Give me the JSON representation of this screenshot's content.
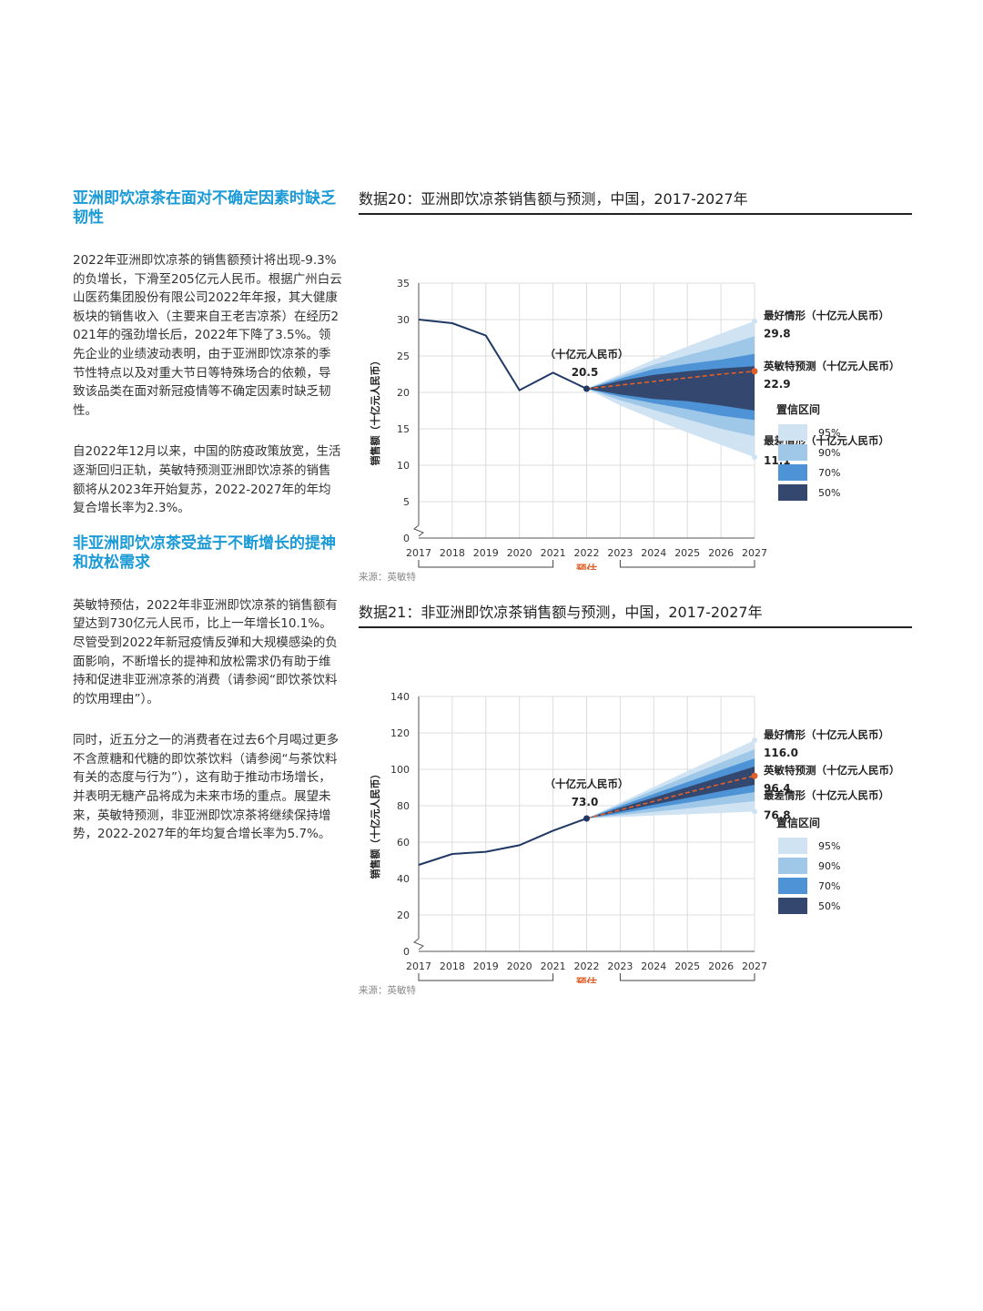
{
  "article": {
    "section1_title": "亚洲即饮凉茶在面对不确定因素时缺乏韧性",
    "section1_p1": "2022年亚洲即饮凉茶的销售额预计将出现-9.3%的负增长，下滑至205亿元人民币。根据广州白云山医药集团股份有限公司2022年年报，其大健康板块的销售收入（主要来自王老吉凉茶）在经历2021年的强劲增长后，2022年下降了3.5%。领先企业的业绩波动表明，由于亚洲即饮凉茶的季节性特点以及对重大节日等特殊场合的依赖，导致该品类在面对新冠疫情等不确定因素时缺乏韧性。",
    "section1_p2": "自2022年12月以来，中国的防疫政策放宽，生活逐渐回归正轨，英敏特预测亚洲即饮凉茶的销售额将从2023年开始复苏，2022-2027年的年均复合增长率为2.3%。",
    "section2_title": "非亚洲即饮凉茶受益于不断增长的提神和放松需求",
    "section2_p1": "英敏特预估，2022年非亚洲即饮凉茶的销售额有望达到730亿元人民币，比上一年增长10.1%。尽管受到2022年新冠疫情反弹和大规模感染的负面影响，不断增长的提神和放松需求仍有助于维持和促进非亚洲凉茶的消费（请参阅“即饮茶饮料的饮用理由”）。",
    "section2_p2": "同时，近五分之一的消费者在过去6个月喝过更多不含蔗糖和代糖的即饮茶饮料（请参阅“与茶饮料有关的态度与行为”），这有助于推动市场增长，并表明无糖产品将成为未来市场的重点。展望未来，英敏特预测，非亚洲即饮凉茶将继续保持增势，2022-2027年的年均复合增长率为5.7%。"
  },
  "figures": [
    {
      "title": "数据20：亚洲即饮凉茶销售额与预测，中国，2017-2027年",
      "source": "来源：英敏特"
    },
    {
      "title": "数据21：非亚洲即饮凉茶销售额与预测，中国，2017-2027年",
      "source": "来源：英敏特"
    }
  ],
  "colors": {
    "line": "#1f3864",
    "forecast": "#e0602a",
    "accent": "#1a9ad6",
    "ci95": "#cfe3f3",
    "ci90": "#9fc7e8",
    "ci70": "#4d93d6",
    "ci50": "#34476f"
  },
  "chart_data": [
    {
      "type": "line",
      "ylabel": "销售额（十亿元人民币）",
      "ylim": [
        0,
        35
      ],
      "yticks": [
        0,
        5,
        10,
        15,
        20,
        25,
        30,
        35
      ],
      "x": [
        "2017",
        "2018",
        "2019",
        "2020",
        "2021",
        "2022",
        "2023",
        "2024",
        "2025",
        "2026",
        "2027"
      ],
      "actual": [
        30.0,
        29.5,
        27.8,
        20.3,
        22.7,
        20.5
      ],
      "forecast": [
        20.5,
        21.0,
        21.5,
        22.0,
        22.5,
        22.9
      ],
      "fan": {
        "ci95": {
          "upper": [
            20.5,
            22.5,
            24.5,
            26.3,
            28.1,
            29.8
          ],
          "lower": [
            20.5,
            18.2,
            16.3,
            14.5,
            12.8,
            11.1
          ]
        },
        "ci90": {
          "upper": [
            20.5,
            22.2,
            23.8,
            25.1,
            26.3,
            27.7
          ],
          "lower": [
            20.5,
            18.9,
            17.6,
            16.3,
            15.0,
            14.0
          ]
        },
        "ci70": {
          "upper": [
            20.5,
            21.9,
            23.2,
            23.9,
            24.5,
            25.3
          ],
          "lower": [
            20.5,
            19.4,
            18.5,
            17.7,
            16.8,
            16.2
          ]
        },
        "ci50": {
          "upper": [
            20.5,
            21.6,
            22.4,
            22.9,
            23.3,
            23.6
          ],
          "lower": [
            20.5,
            19.7,
            19.1,
            18.8,
            18.2,
            17.5
          ]
        }
      },
      "est_label": "（十亿元人民币）",
      "est_value": "20.5",
      "best": {
        "label": "最好情形（十亿元人民币）",
        "value": "29.8"
      },
      "mid": {
        "label": "英敏特预测（十亿元人民币）",
        "value": "22.9"
      },
      "worst": {
        "label": "最差情形（十亿元人民币）",
        "value": "11.1"
      },
      "legend_title": "置信区间",
      "legend": [
        "95%",
        "90%",
        "70%",
        "50%"
      ],
      "period_actual": "实际",
      "period_est": "预估",
      "period_fc": "预测"
    },
    {
      "type": "line",
      "ylabel": "销售额（十亿元人民币）",
      "ylim": [
        0,
        140
      ],
      "yticks": [
        0,
        20,
        40,
        60,
        80,
        100,
        120,
        140
      ],
      "x": [
        "2017",
        "2018",
        "2019",
        "2020",
        "2021",
        "2022",
        "2023",
        "2024",
        "2025",
        "2026",
        "2027"
      ],
      "actual": [
        47.5,
        53.5,
        54.7,
        58.3,
        66.3,
        73.0
      ],
      "forecast": [
        73.0,
        77.7,
        82.4,
        87.2,
        91.9,
        96.4
      ],
      "fan": {
        "ci95": {
          "upper": [
            73.0,
            81.6,
            90.3,
            99.0,
            107.5,
            116.0
          ],
          "lower": [
            73.0,
            73.8,
            74.6,
            75.3,
            76.0,
            76.8
          ]
        },
        "ci90": {
          "upper": [
            73.0,
            80.8,
            88.6,
            96.3,
            103.7,
            111.0
          ],
          "lower": [
            73.0,
            74.8,
            76.6,
            78.5,
            80.6,
            82.5
          ]
        },
        "ci70": {
          "upper": [
            73.0,
            79.8,
            86.5,
            93.0,
            99.6,
            106.0
          ],
          "lower": [
            73.0,
            75.8,
            78.8,
            81.7,
            84.6,
            87.5
          ]
        },
        "ci50": {
          "upper": [
            73.0,
            78.8,
            84.5,
            90.2,
            95.8,
            101.5
          ],
          "lower": [
            73.0,
            76.8,
            80.6,
            84.3,
            88.0,
            91.5
          ]
        }
      },
      "est_label": "（十亿元人民币）",
      "est_value": "73.0",
      "best": {
        "label": "最好情形（十亿元人民币）",
        "value": "116.0"
      },
      "mid": {
        "label": "英敏特预测（十亿元人民币）",
        "value": "96.4"
      },
      "worst": {
        "label": "最差情形（十亿元人民币）",
        "value": "76.8"
      },
      "legend_title": "置信区间",
      "legend": [
        "95%",
        "90%",
        "70%",
        "50%"
      ],
      "period_actual": "实际",
      "period_est": "预估",
      "period_fc": "预测"
    }
  ]
}
